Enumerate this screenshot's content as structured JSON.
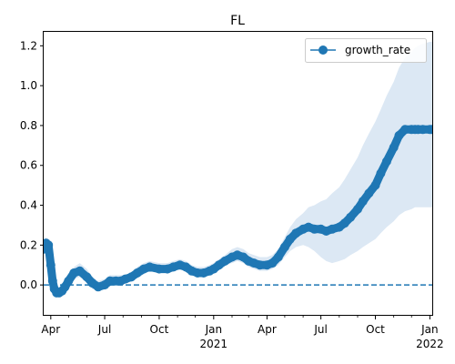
{
  "chart_data": {
    "type": "line",
    "title": "FL",
    "xlabel": "",
    "ylabel": "",
    "xlim": [
      "2020-03-20",
      "2022-01-05"
    ],
    "ylim": [
      -0.15,
      1.27
    ],
    "grid": false,
    "legend": {
      "placement": "top-right",
      "entries": [
        "growth_rate"
      ]
    },
    "colors": {
      "series": "#1f77b4",
      "band": "#dce8f4",
      "reference_line": "#1f77b4"
    },
    "reference_line": {
      "y": 0.0,
      "style": "dashed"
    },
    "y_ticks": [
      0.0,
      0.2,
      0.4,
      0.6,
      0.8,
      1.0,
      1.2
    ],
    "y_tick_labels": [
      "0.0",
      "0.2",
      "0.4",
      "0.6",
      "0.8",
      "1.0",
      "1.2"
    ],
    "x_ticks": [
      {
        "date": "2020-04-01",
        "label": "Apr",
        "sublabel": ""
      },
      {
        "date": "2020-07-01",
        "label": "Jul",
        "sublabel": ""
      },
      {
        "date": "2020-10-01",
        "label": "Oct",
        "sublabel": ""
      },
      {
        "date": "2021-01-01",
        "label": "Jan",
        "sublabel": "2021"
      },
      {
        "date": "2021-04-01",
        "label": "Apr",
        "sublabel": ""
      },
      {
        "date": "2021-07-01",
        "label": "Jul",
        "sublabel": ""
      },
      {
        "date": "2021-10-01",
        "label": "Oct",
        "sublabel": ""
      },
      {
        "date": "2022-01-01",
        "label": "Jan",
        "sublabel": "2022"
      }
    ],
    "x_minor_ticks": [
      "2020-05-01",
      "2020-06-01",
      "2020-08-01",
      "2020-09-01",
      "2020-11-01",
      "2020-12-01",
      "2021-02-01",
      "2021-03-01",
      "2021-05-01",
      "2021-06-01",
      "2021-08-01",
      "2021-09-01",
      "2021-11-01",
      "2021-12-01"
    ],
    "series": [
      {
        "name": "growth_rate",
        "x": [
          "2020-03-20",
          "2020-03-24",
          "2020-03-28",
          "2020-04-01",
          "2020-04-04",
          "2020-04-07",
          "2020-04-11",
          "2020-04-15",
          "2020-04-20",
          "2020-04-25",
          "2020-05-01",
          "2020-05-10",
          "2020-05-20",
          "2020-06-01",
          "2020-06-10",
          "2020-06-20",
          "2020-07-01",
          "2020-07-10",
          "2020-07-20",
          "2020-07-28",
          "2020-08-05",
          "2020-08-15",
          "2020-08-25",
          "2020-09-05",
          "2020-09-15",
          "2020-10-01",
          "2020-10-15",
          "2020-10-25",
          "2020-11-05",
          "2020-11-15",
          "2020-11-25",
          "2020-12-05",
          "2020-12-15",
          "2020-12-25",
          "2021-01-01",
          "2021-01-10",
          "2021-01-20",
          "2021-02-01",
          "2021-02-10",
          "2021-02-20",
          "2021-03-01",
          "2021-03-10",
          "2021-03-20",
          "2021-04-01",
          "2021-04-10",
          "2021-04-20",
          "2021-05-01",
          "2021-05-10",
          "2021-05-20",
          "2021-06-01",
          "2021-06-10",
          "2021-06-20",
          "2021-07-01",
          "2021-07-10",
          "2021-07-20",
          "2021-08-01",
          "2021-08-10",
          "2021-08-20",
          "2021-09-01",
          "2021-09-10",
          "2021-09-20",
          "2021-10-01",
          "2021-10-10",
          "2021-10-20",
          "2021-11-01",
          "2021-11-10",
          "2021-11-20",
          "2021-12-01",
          "2021-12-07",
          "2021-12-12",
          "2021-12-20",
          "2022-01-01",
          "2022-01-05"
        ],
        "values": [
          0.18,
          0.21,
          0.2,
          0.1,
          0.02,
          -0.02,
          -0.04,
          -0.04,
          -0.03,
          -0.01,
          0.02,
          0.06,
          0.07,
          0.04,
          0.01,
          -0.01,
          0.0,
          0.02,
          0.02,
          0.02,
          0.03,
          0.04,
          0.06,
          0.08,
          0.09,
          0.08,
          0.08,
          0.09,
          0.1,
          0.09,
          0.07,
          0.06,
          0.06,
          0.07,
          0.08,
          0.1,
          0.12,
          0.14,
          0.15,
          0.14,
          0.12,
          0.11,
          0.1,
          0.1,
          0.11,
          0.14,
          0.19,
          0.23,
          0.26,
          0.28,
          0.29,
          0.28,
          0.28,
          0.27,
          0.28,
          0.29,
          0.31,
          0.34,
          0.38,
          0.42,
          0.46,
          0.5,
          0.56,
          0.62,
          0.69,
          0.75,
          0.78,
          0.78,
          0.78,
          0.78,
          0.78,
          0.78,
          0.78
        ],
        "lower": [
          0.15,
          0.18,
          0.17,
          0.07,
          -0.01,
          -0.05,
          -0.06,
          -0.06,
          -0.05,
          -0.03,
          0.0,
          0.03,
          0.04,
          0.01,
          -0.02,
          -0.03,
          -0.02,
          0.0,
          0.01,
          0.01,
          0.02,
          0.02,
          0.04,
          0.06,
          0.07,
          0.06,
          0.06,
          0.07,
          0.08,
          0.07,
          0.05,
          0.04,
          0.04,
          0.05,
          0.06,
          0.08,
          0.1,
          0.11,
          0.12,
          0.11,
          0.09,
          0.08,
          0.07,
          0.07,
          0.08,
          0.1,
          0.14,
          0.17,
          0.19,
          0.2,
          0.19,
          0.17,
          0.14,
          0.12,
          0.11,
          0.12,
          0.13,
          0.15,
          0.17,
          0.19,
          0.21,
          0.23,
          0.26,
          0.29,
          0.32,
          0.35,
          0.37,
          0.38,
          0.39,
          0.39,
          0.39,
          0.39,
          0.39
        ],
        "upper": [
          0.21,
          0.24,
          0.23,
          0.13,
          0.05,
          0.01,
          -0.02,
          -0.02,
          -0.01,
          0.01,
          0.04,
          0.09,
          0.11,
          0.08,
          0.04,
          0.02,
          0.03,
          0.05,
          0.05,
          0.05,
          0.05,
          0.06,
          0.09,
          0.11,
          0.12,
          0.11,
          0.11,
          0.12,
          0.13,
          0.12,
          0.1,
          0.09,
          0.09,
          0.1,
          0.11,
          0.13,
          0.15,
          0.18,
          0.19,
          0.18,
          0.16,
          0.15,
          0.14,
          0.14,
          0.15,
          0.18,
          0.24,
          0.29,
          0.33,
          0.36,
          0.39,
          0.4,
          0.42,
          0.43,
          0.46,
          0.49,
          0.53,
          0.58,
          0.64,
          0.7,
          0.76,
          0.82,
          0.88,
          0.95,
          1.02,
          1.09,
          1.14,
          1.17,
          1.19,
          1.2,
          1.21,
          1.22,
          1.22
        ]
      }
    ]
  }
}
